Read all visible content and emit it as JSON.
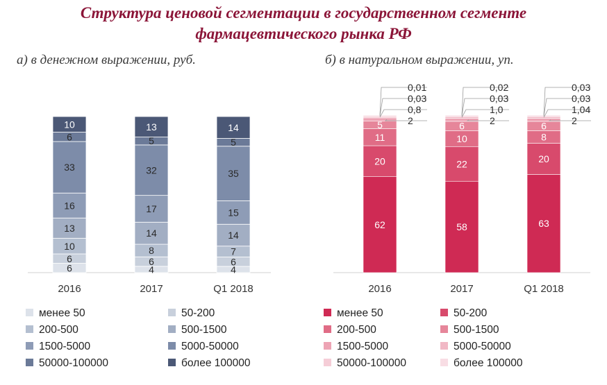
{
  "title_line1": "Структура ценовой сегментации в государственном сегменте",
  "title_line2": "фармацевтического рынка РФ",
  "chart_data": [
    {
      "type": "stacked-bar",
      "title": "а) в денежном выражении, руб.",
      "categories": [
        "2016",
        "2017",
        "Q1 2018"
      ],
      "colors": [
        "#dde2ea",
        "#c8d0dc",
        "#b4bfd0",
        "#a2aec3",
        "#8e9cb6",
        "#7d8ca9",
        "#6b7a98",
        "#4b5876"
      ],
      "series": [
        {
          "name": "менее 50",
          "values": [
            6,
            4,
            4
          ]
        },
        {
          "name": "50-200",
          "values": [
            6,
            6,
            6
          ]
        },
        {
          "name": "200-500",
          "values": [
            10,
            8,
            7
          ]
        },
        {
          "name": "500-1500",
          "values": [
            13,
            14,
            14
          ]
        },
        {
          "name": "1500-5000",
          "values": [
            16,
            17,
            15
          ]
        },
        {
          "name": "5000-50000",
          "values": [
            33,
            32,
            35
          ]
        },
        {
          "name": "50000-100000",
          "values": [
            6,
            5,
            5
          ]
        },
        {
          "name": "более 100000",
          "values": [
            10,
            13,
            14
          ]
        }
      ],
      "labels": [
        [
          "6",
          "6",
          "10",
          "13",
          "16",
          "33",
          "6",
          "10"
        ],
        [
          "4",
          "6",
          "8",
          "14",
          "17",
          "32",
          "5",
          "13"
        ],
        [
          "4",
          "6",
          "7",
          "14",
          "15",
          "35",
          "5",
          "14"
        ]
      ]
    },
    {
      "type": "stacked-bar",
      "title": "б) в натуральном выражении, уп.",
      "categories": [
        "2016",
        "2017",
        "Q1 2018"
      ],
      "colors": [
        "#cf2a54",
        "#d84a6c",
        "#e06c86",
        "#e6869a",
        "#eda4b4",
        "#f1b8c5",
        "#f5cdd7",
        "#f8dde4"
      ],
      "series": [
        {
          "name": "менее 50",
          "values": [
            62,
            58,
            63
          ]
        },
        {
          "name": "50-200",
          "values": [
            20,
            22,
            20
          ]
        },
        {
          "name": "200-500",
          "values": [
            11,
            10,
            8
          ]
        },
        {
          "name": "500-1500",
          "values": [
            5,
            6,
            6
          ]
        },
        {
          "name": "1500-5000",
          "values": [
            2,
            2,
            2
          ]
        },
        {
          "name": "5000-50000",
          "values": [
            0.8,
            1.0,
            1.04
          ]
        },
        {
          "name": "50000-100000",
          "values": [
            0.03,
            0.03,
            0.03
          ]
        },
        {
          "name": "более 100000",
          "values": [
            0.01,
            0.02,
            0.03
          ]
        }
      ],
      "labels": [
        [
          "62",
          "20",
          "11",
          "5",
          "2",
          "0,8",
          "0,03",
          "0,01"
        ],
        [
          "58",
          "22",
          "10",
          "6",
          "2",
          "1,0",
          "0,03",
          "0,02"
        ],
        [
          "63",
          "20",
          "8",
          "6",
          "2",
          "1,04",
          "0,03",
          "0,03"
        ]
      ]
    }
  ]
}
